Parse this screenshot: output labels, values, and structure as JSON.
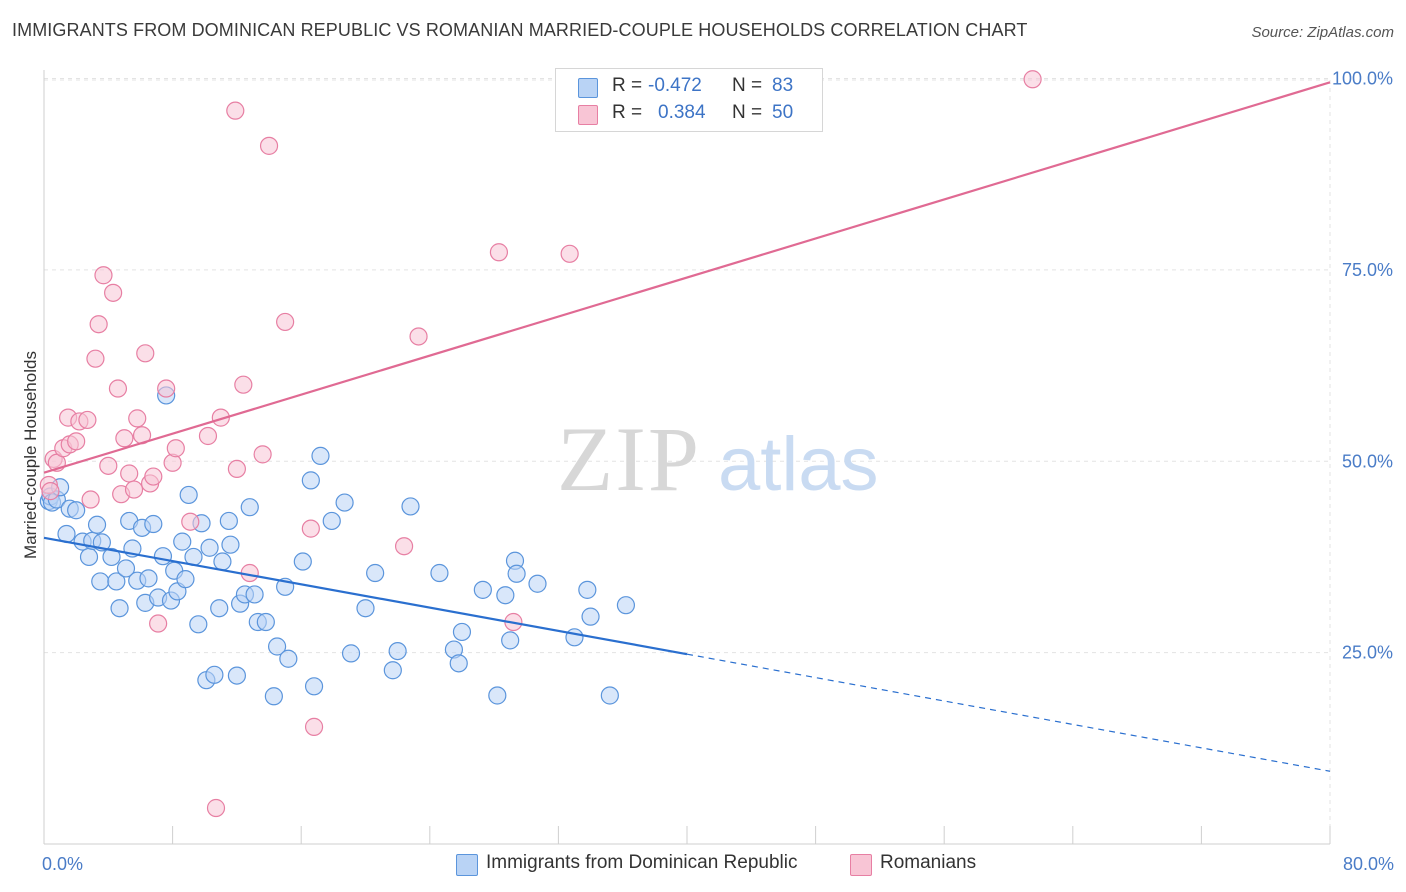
{
  "header": {
    "title": "IMMIGRANTS FROM DOMINICAN REPUBLIC VS ROMANIAN MARRIED-COUPLE HOUSEHOLDS CORRELATION CHART",
    "source": "Source: ZipAtlas.com"
  },
  "watermark": {
    "zip": "ZIP",
    "atlas": "atlas"
  },
  "legend": {
    "series1": {
      "r_label": "R =",
      "r_value": "-0.472",
      "n_label": "N =",
      "n_value": "83"
    },
    "series2": {
      "r_label": "R =",
      "r_value": "0.384",
      "n_label": "N =",
      "n_value": "50"
    }
  },
  "colors": {
    "blue": "#5b95dc",
    "blue_fill": "#b9d3f5",
    "blue_line": "#2a6fcf",
    "pink": "#e77fa3",
    "pink_fill": "#f8c5d5",
    "pink_line": "#e06a93",
    "tick": "#4a7cc7"
  },
  "chart_data": {
    "type": "scatter",
    "title": "IMMIGRANTS FROM DOMINICAN REPUBLIC VS ROMANIAN MARRIED-COUPLE HOUSEHOLDS CORRELATION CHART",
    "xlabel": "",
    "ylabel": "Married-couple Households",
    "xlim": [
      0,
      80
    ],
    "ylim": [
      0,
      103
    ],
    "x_tick_labels": [
      "0.0%",
      "80.0%"
    ],
    "y_ticks": [
      25,
      50,
      75,
      100
    ],
    "y_tick_labels": [
      "25.0%",
      "50.0%",
      "75.0%",
      "100.0%"
    ],
    "grid": true,
    "legend_position": "bottom",
    "series": [
      {
        "name": "Immigrants from Dominican Republic",
        "color": "blue",
        "trend": {
          "x0": 0,
          "y0": 40.0,
          "x1": 40,
          "y1": 24.8,
          "dash_to_x": 80,
          "dash_to_y": 9.5
        },
        "points": [
          [
            0.3,
            44.8
          ],
          [
            0.4,
            45.4
          ],
          [
            0.5,
            44.6
          ],
          [
            0.8,
            45.0
          ],
          [
            1.0,
            46.6
          ],
          [
            1.4,
            40.5
          ],
          [
            1.6,
            43.8
          ],
          [
            2.0,
            43.6
          ],
          [
            2.4,
            39.5
          ],
          [
            2.8,
            37.5
          ],
          [
            3.0,
            39.6
          ],
          [
            3.3,
            41.7
          ],
          [
            3.5,
            34.3
          ],
          [
            3.6,
            39.4
          ],
          [
            4.2,
            37.5
          ],
          [
            4.5,
            34.3
          ],
          [
            4.7,
            30.8
          ],
          [
            5.1,
            36.0
          ],
          [
            5.3,
            42.2
          ],
          [
            5.5,
            38.6
          ],
          [
            5.8,
            34.4
          ],
          [
            6.1,
            41.3
          ],
          [
            6.3,
            31.5
          ],
          [
            6.5,
            34.7
          ],
          [
            6.8,
            41.8
          ],
          [
            7.1,
            32.2
          ],
          [
            7.4,
            37.6
          ],
          [
            7.6,
            58.6
          ],
          [
            7.9,
            31.8
          ],
          [
            8.1,
            35.7
          ],
          [
            8.3,
            33.0
          ],
          [
            8.6,
            39.5
          ],
          [
            8.8,
            34.6
          ],
          [
            9.0,
            45.6
          ],
          [
            9.3,
            37.5
          ],
          [
            9.6,
            28.7
          ],
          [
            9.8,
            41.9
          ],
          [
            10.1,
            21.4
          ],
          [
            10.3,
            38.7
          ],
          [
            10.6,
            22.1
          ],
          [
            10.9,
            30.8
          ],
          [
            11.1,
            36.9
          ],
          [
            11.5,
            42.2
          ],
          [
            11.6,
            39.1
          ],
          [
            12.0,
            22.0
          ],
          [
            12.2,
            31.4
          ],
          [
            12.5,
            32.6
          ],
          [
            12.8,
            44.0
          ],
          [
            13.1,
            32.6
          ],
          [
            13.3,
            29.0
          ],
          [
            13.8,
            29.0
          ],
          [
            14.3,
            19.3
          ],
          [
            14.5,
            25.8
          ],
          [
            15.0,
            33.6
          ],
          [
            15.2,
            24.2
          ],
          [
            16.1,
            36.9
          ],
          [
            16.6,
            47.5
          ],
          [
            16.8,
            20.6
          ],
          [
            17.2,
            50.7
          ],
          [
            17.9,
            42.2
          ],
          [
            18.7,
            44.6
          ],
          [
            19.1,
            24.9
          ],
          [
            20.0,
            30.8
          ],
          [
            20.6,
            35.4
          ],
          [
            21.7,
            22.7
          ],
          [
            22.0,
            25.2
          ],
          [
            22.8,
            44.1
          ],
          [
            24.6,
            35.4
          ],
          [
            25.5,
            25.4
          ],
          [
            25.8,
            23.6
          ],
          [
            26.0,
            27.7
          ],
          [
            27.3,
            33.2
          ],
          [
            28.2,
            19.4
          ],
          [
            28.7,
            32.5
          ],
          [
            29.0,
            26.6
          ],
          [
            29.3,
            37.0
          ],
          [
            30.7,
            34.0
          ],
          [
            33.0,
            27.0
          ],
          [
            33.8,
            33.2
          ],
          [
            34.0,
            29.7
          ],
          [
            35.2,
            19.4
          ],
          [
            36.2,
            31.2
          ],
          [
            29.4,
            35.3
          ]
        ]
      },
      {
        "name": "Romanians",
        "color": "pink",
        "trend": {
          "x0": 0,
          "y0": 48.5,
          "x1": 80,
          "y1": 99.5
        },
        "points": [
          [
            0.3,
            46.9
          ],
          [
            0.4,
            46.1
          ],
          [
            0.6,
            50.3
          ],
          [
            0.8,
            49.8
          ],
          [
            1.2,
            51.7
          ],
          [
            1.5,
            55.7
          ],
          [
            1.6,
            52.2
          ],
          [
            2.0,
            52.6
          ],
          [
            2.2,
            55.2
          ],
          [
            2.7,
            55.4
          ],
          [
            2.9,
            45.0
          ],
          [
            3.2,
            63.4
          ],
          [
            3.4,
            67.9
          ],
          [
            3.7,
            74.3
          ],
          [
            4.0,
            49.4
          ],
          [
            4.3,
            72.0
          ],
          [
            4.6,
            59.5
          ],
          [
            4.8,
            45.7
          ],
          [
            5.0,
            53.0
          ],
          [
            5.3,
            48.4
          ],
          [
            5.6,
            46.3
          ],
          [
            5.8,
            55.6
          ],
          [
            6.1,
            53.4
          ],
          [
            6.3,
            64.1
          ],
          [
            6.6,
            47.1
          ],
          [
            6.8,
            48.0
          ],
          [
            7.1,
            28.8
          ],
          [
            7.6,
            59.5
          ],
          [
            8.0,
            49.8
          ],
          [
            8.2,
            51.7
          ],
          [
            9.1,
            42.1
          ],
          [
            10.2,
            53.3
          ],
          [
            10.7,
            4.7
          ],
          [
            11.0,
            55.7
          ],
          [
            11.9,
            95.8
          ],
          [
            12.0,
            49.0
          ],
          [
            12.4,
            60.0
          ],
          [
            12.8,
            35.4
          ],
          [
            13.6,
            50.9
          ],
          [
            14.0,
            91.2
          ],
          [
            15.0,
            68.2
          ],
          [
            16.6,
            41.2
          ],
          [
            16.8,
            15.3
          ],
          [
            22.4,
            38.9
          ],
          [
            23.3,
            66.3
          ],
          [
            28.3,
            77.3
          ],
          [
            29.2,
            29.0
          ],
          [
            32.7,
            77.1
          ],
          [
            34.5,
            99.7
          ],
          [
            61.5,
            99.9
          ]
        ]
      }
    ]
  }
}
